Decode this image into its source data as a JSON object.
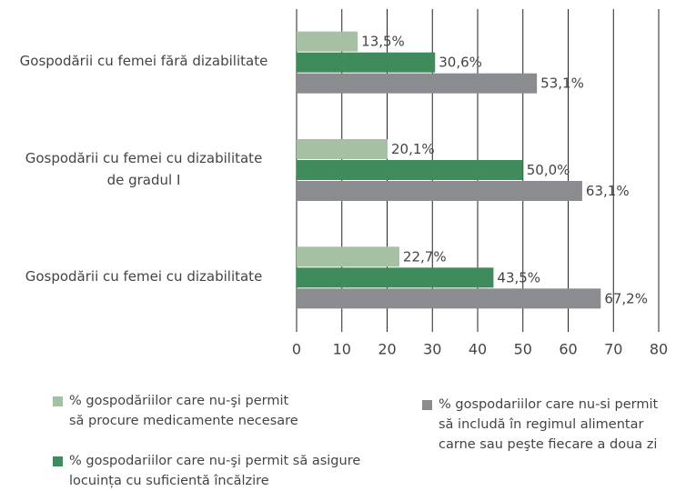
{
  "chart_data": {
    "type": "bar",
    "orientation": "horizontal",
    "categories": [
      "Gospodării cu femei fără dizabilitate",
      "Gospodării cu femei cu dizabilitate\nde gradul I",
      "Gospodării cu femei cu dizabilitate"
    ],
    "series": [
      {
        "name": "% gospodăriilor care nu-şi permit\nsă procure medicamente necesare",
        "color": "#a5c0a2",
        "values": [
          13.5,
          20.1,
          22.7
        ],
        "value_labels": [
          "13,5%",
          "20,1%",
          "22,7%"
        ]
      },
      {
        "name": "% gospodariilor care nu-şi permit să asigure\nlocuința cu suficientă încălzire",
        "color": "#3f8b5b",
        "values": [
          30.6,
          50.0,
          43.5
        ],
        "value_labels": [
          "30,6%",
          "50,0%",
          "43,5%"
        ]
      },
      {
        "name": "% gospodariilor care nu-si permit\nsă includă în regimul alimentar\ncarne sau peşte fiecare a doua zi",
        "color": "#8b8c90",
        "values": [
          53.1,
          63.1,
          67.2
        ],
        "value_labels": [
          "53,1%",
          "63,1%",
          "67,2%"
        ]
      }
    ],
    "xlim": [
      0,
      80
    ],
    "xticks": [
      0,
      10,
      20,
      30,
      40,
      50,
      60,
      70,
      80
    ],
    "grid": true
  }
}
